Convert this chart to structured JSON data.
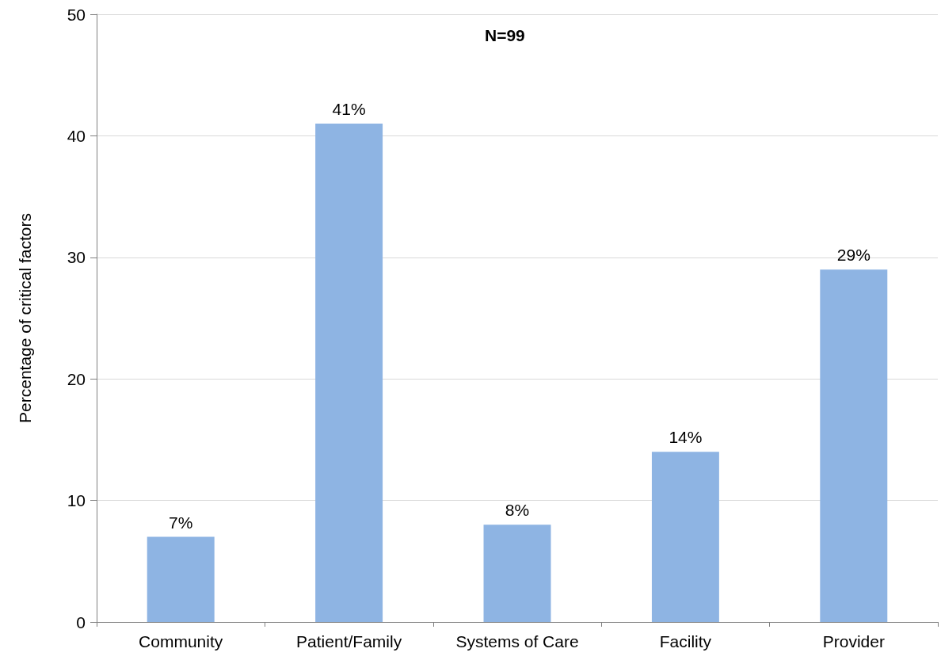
{
  "chart_data": {
    "type": "bar",
    "ylabel": "Percentage of critical factors",
    "annotations": [
      "N=99"
    ],
    "categories": [
      "Community",
      "Patient/Family",
      "Systems of Care",
      "Facility",
      "Provider"
    ],
    "values": [
      7,
      41,
      8,
      14,
      29
    ],
    "value_labels": [
      "7%",
      "41%",
      "8%",
      "14%",
      "29%"
    ],
    "color": "#8eb4e3",
    "ylim": [
      0,
      50
    ],
    "yticks": [
      0,
      10,
      20,
      30,
      40,
      50
    ],
    "grid": "y"
  }
}
